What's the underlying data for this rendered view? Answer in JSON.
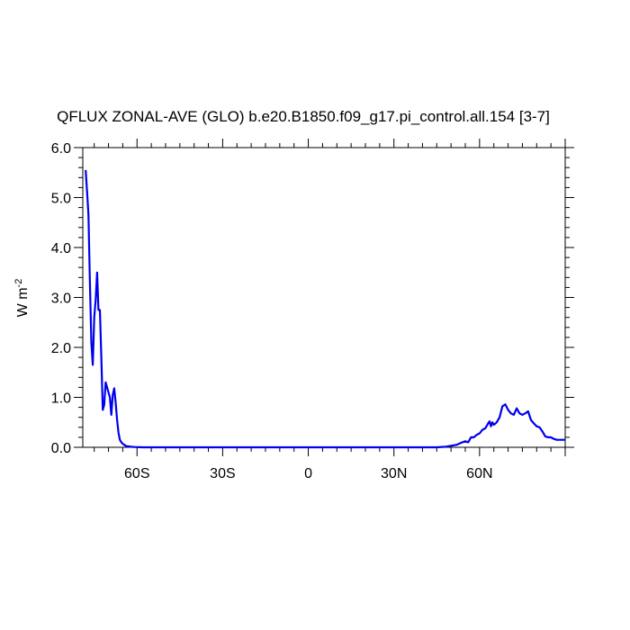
{
  "chart_data": {
    "type": "line",
    "title": "QFLUX ZONAL-AVE (GLO) b.e20.B1850.f09_g17.pi_control.all.154 [3-7]",
    "ylabel_main": "W m",
    "ylabel_sup": "-2",
    "xlabel": "",
    "xlim": [
      -79,
      90
    ],
    "ylim": [
      0,
      6
    ],
    "grid": false,
    "line_color": "#0000ee",
    "x_ticks": [
      {
        "value": -60,
        "label": "60S"
      },
      {
        "value": -30,
        "label": "30S"
      },
      {
        "value": 0,
        "label": "0"
      },
      {
        "value": 30,
        "label": "30N"
      },
      {
        "value": 60,
        "label": "60N"
      }
    ],
    "y_ticks": [
      {
        "value": 0,
        "label": "0.0"
      },
      {
        "value": 1,
        "label": "1.0"
      },
      {
        "value": 2,
        "label": "2.0"
      },
      {
        "value": 3,
        "label": "3.0"
      },
      {
        "value": 4,
        "label": "4.0"
      },
      {
        "value": 5,
        "label": "5.0"
      },
      {
        "value": 6,
        "label": "6.0"
      }
    ],
    "series": [
      {
        "x": [
          -78,
          -77.5,
          -77,
          -76.5,
          -76,
          -75.5,
          -75,
          -74.5,
          -74,
          -73.5,
          -73,
          -72.5,
          -72,
          -71.5,
          -71,
          -70.5,
          -70,
          -69.5,
          -69,
          -68.5,
          -68,
          -67.5,
          -67,
          -66.5,
          -66,
          -65.5,
          -65,
          -64.5,
          -64,
          -63.5,
          -63,
          -62,
          -61,
          -60,
          -59,
          -58,
          -57,
          -56,
          -55,
          -50,
          -40,
          -30,
          -20,
          -10,
          0,
          10,
          20,
          30,
          40,
          45,
          48,
          50,
          52,
          54,
          55,
          56,
          57,
          58,
          59,
          60,
          61,
          62,
          63,
          63.5,
          64,
          64.5,
          65,
          66,
          67,
          68,
          69,
          70,
          71,
          72,
          73,
          74,
          75,
          76,
          77,
          78,
          79,
          80,
          81,
          82,
          83,
          84,
          85,
          86,
          87,
          88,
          89,
          90
        ],
        "y": [
          5.55,
          5.1,
          4.65,
          3.3,
          2.1,
          1.65,
          2.6,
          2.95,
          3.5,
          2.75,
          2.75,
          1.8,
          0.75,
          0.85,
          1.3,
          1.2,
          1.1,
          1.0,
          0.65,
          1.05,
          1.18,
          0.9,
          0.55,
          0.3,
          0.15,
          0.1,
          0.07,
          0.05,
          0.03,
          0.02,
          0.02,
          0.01,
          0.005,
          0.003,
          0.002,
          0,
          0,
          0,
          0,
          0,
          0,
          0,
          0,
          0,
          0,
          0,
          0,
          0,
          0,
          0,
          0.01,
          0.03,
          0.05,
          0.1,
          0.12,
          0.1,
          0.2,
          0.2,
          0.25,
          0.28,
          0.35,
          0.38,
          0.48,
          0.52,
          0.42,
          0.5,
          0.45,
          0.5,
          0.6,
          0.82,
          0.86,
          0.75,
          0.68,
          0.65,
          0.78,
          0.68,
          0.65,
          0.68,
          0.72,
          0.55,
          0.48,
          0.42,
          0.4,
          0.32,
          0.22,
          0.2,
          0.2,
          0.17,
          0.15,
          0.15,
          0.15,
          0.15
        ]
      }
    ]
  }
}
